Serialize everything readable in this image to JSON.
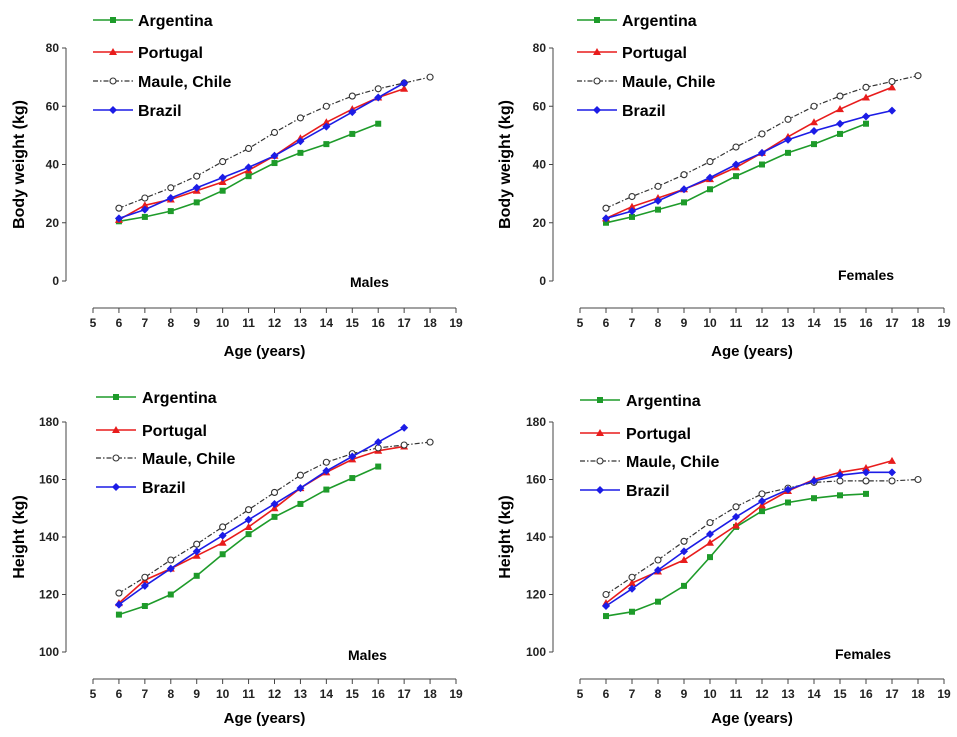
{
  "chart_data": [
    {
      "type": "line",
      "title": "",
      "annotation": "Males",
      "xlabel": "Age (years)",
      "ylabel": "Body weight (kg)",
      "xlim": [
        5,
        19
      ],
      "ylim": [
        0,
        80
      ],
      "x_ticks": [
        5,
        6,
        7,
        8,
        9,
        10,
        11,
        12,
        13,
        14,
        15,
        16,
        17,
        18,
        19
      ],
      "y_ticks": [
        0,
        20,
        40,
        60,
        80
      ],
      "series": [
        {
          "name": "Argentina",
          "color": "#1e9b2a",
          "marker": "square",
          "dash": "solid",
          "x": [
            6,
            7,
            8,
            9,
            10,
            11,
            12,
            13,
            14,
            15,
            16
          ],
          "values": [
            20.5,
            22,
            24,
            27,
            31,
            36,
            40.5,
            44,
            47,
            50.5,
            54
          ]
        },
        {
          "name": "Portugal",
          "color": "#e81c1c",
          "marker": "triangle",
          "dash": "solid",
          "x": [
            6,
            7,
            8,
            9,
            10,
            11,
            12,
            13,
            14,
            15,
            16,
            17
          ],
          "values": [
            21,
            26,
            28,
            31,
            34,
            38,
            43,
            49,
            54.5,
            59,
            63,
            66
          ]
        },
        {
          "name": "Maule, Chile",
          "color": "#333333",
          "marker": "circle-open",
          "dash": "dashdot",
          "x": [
            6,
            7,
            8,
            9,
            10,
            11,
            12,
            13,
            14,
            15,
            16,
            17,
            18
          ],
          "values": [
            25,
            28.5,
            32,
            36,
            41,
            45.5,
            51,
            56,
            60,
            63.5,
            66,
            68,
            70
          ]
        },
        {
          "name": "Brazil",
          "color": "#1c1ce6",
          "marker": "diamond",
          "dash": "solid",
          "x": [
            6,
            7,
            8,
            9,
            10,
            11,
            12,
            13,
            14,
            15,
            16,
            17
          ],
          "values": [
            21.5,
            24.5,
            28.5,
            32,
            35.5,
            39,
            43,
            48,
            53,
            58,
            63,
            68
          ]
        }
      ]
    },
    {
      "type": "line",
      "title": "",
      "annotation": "Females",
      "xlabel": "Age (years)",
      "ylabel": "Body weight (kg)",
      "xlim": [
        5,
        19
      ],
      "ylim": [
        0,
        80
      ],
      "x_ticks": [
        5,
        6,
        7,
        8,
        9,
        10,
        11,
        12,
        13,
        14,
        15,
        16,
        17,
        18,
        19
      ],
      "y_ticks": [
        0,
        20,
        40,
        60,
        80
      ],
      "series": [
        {
          "name": "Argentina",
          "color": "#1e9b2a",
          "marker": "square",
          "dash": "solid",
          "x": [
            6,
            7,
            8,
            9,
            10,
            11,
            12,
            13,
            14,
            15,
            16
          ],
          "values": [
            20,
            22,
            24.5,
            27,
            31.5,
            36,
            40,
            44,
            47,
            50.5,
            54
          ]
        },
        {
          "name": "Portugal",
          "color": "#e81c1c",
          "marker": "triangle",
          "dash": "solid",
          "x": [
            6,
            7,
            8,
            9,
            10,
            11,
            12,
            13,
            14,
            15,
            16,
            17
          ],
          "values": [
            21.5,
            25.5,
            28.5,
            31.5,
            35,
            39,
            44,
            49.5,
            54.5,
            59,
            63,
            66.5
          ]
        },
        {
          "name": "Maule, Chile",
          "color": "#333333",
          "marker": "circle-open",
          "dash": "dashdot",
          "x": [
            6,
            7,
            8,
            9,
            10,
            11,
            12,
            13,
            14,
            15,
            16,
            17,
            18
          ],
          "values": [
            25,
            29,
            32.5,
            36.5,
            41,
            46,
            50.5,
            55.5,
            60,
            63.5,
            66.5,
            68.5,
            70.5
          ]
        },
        {
          "name": "Brazil",
          "color": "#1c1ce6",
          "marker": "diamond",
          "dash": "solid",
          "x": [
            6,
            7,
            8,
            9,
            10,
            11,
            12,
            13,
            14,
            15,
            16,
            17
          ],
          "values": [
            21.5,
            24,
            27.5,
            31.5,
            35.5,
            40,
            44,
            48.5,
            51.5,
            54,
            56.5,
            58.5
          ]
        }
      ]
    },
    {
      "type": "line",
      "title": "",
      "annotation": "Males",
      "xlabel": "Age (years)",
      "ylabel": "Height (kg)",
      "xlim": [
        5,
        19
      ],
      "ylim": [
        100,
        180
      ],
      "x_ticks": [
        5,
        6,
        7,
        8,
        9,
        10,
        11,
        12,
        13,
        14,
        15,
        16,
        17,
        18,
        19
      ],
      "y_ticks": [
        100,
        120,
        140,
        160,
        180
      ],
      "series": [
        {
          "name": "Argentina",
          "color": "#1e9b2a",
          "marker": "square",
          "dash": "solid",
          "x": [
            6,
            7,
            8,
            9,
            10,
            11,
            12,
            13,
            14,
            15,
            16
          ],
          "values": [
            113,
            116,
            120,
            126.5,
            134,
            141,
            147,
            151.5,
            156.5,
            160.5,
            164.5
          ]
        },
        {
          "name": "Portugal",
          "color": "#e81c1c",
          "marker": "triangle",
          "dash": "solid",
          "x": [
            6,
            7,
            8,
            9,
            10,
            11,
            12,
            13,
            14,
            15,
            16,
            17
          ],
          "values": [
            117,
            125,
            129,
            133.5,
            138,
            143.5,
            150,
            157,
            162.5,
            167,
            170,
            171.5
          ]
        },
        {
          "name": "Maule, Chile",
          "color": "#333333",
          "marker": "circle-open",
          "dash": "dashdot",
          "x": [
            6,
            7,
            8,
            9,
            10,
            11,
            12,
            13,
            14,
            15,
            16,
            17,
            18
          ],
          "values": [
            120.5,
            126,
            132,
            137.5,
            143.5,
            149.5,
            155.5,
            161.5,
            166,
            169,
            171,
            172,
            173
          ]
        },
        {
          "name": "Brazil",
          "color": "#1c1ce6",
          "marker": "diamond",
          "dash": "solid",
          "x": [
            6,
            7,
            8,
            9,
            10,
            11,
            12,
            13,
            14,
            15,
            16,
            17
          ],
          "values": [
            116.5,
            123,
            129,
            135,
            140.5,
            146,
            151.5,
            157,
            163,
            168,
            173,
            178
          ]
        }
      ]
    },
    {
      "type": "line",
      "title": "",
      "annotation": "Females",
      "xlabel": "Age (years)",
      "ylabel": "Height (kg)",
      "xlim": [
        5,
        19
      ],
      "ylim": [
        100,
        180
      ],
      "x_ticks": [
        5,
        6,
        7,
        8,
        9,
        10,
        11,
        12,
        13,
        14,
        15,
        16,
        17,
        18,
        19
      ],
      "y_ticks": [
        100,
        120,
        140,
        160,
        180
      ],
      "series": [
        {
          "name": "Argentina",
          "color": "#1e9b2a",
          "marker": "square",
          "dash": "solid",
          "x": [
            6,
            7,
            8,
            9,
            10,
            11,
            12,
            13,
            14,
            15,
            16
          ],
          "values": [
            112.5,
            114,
            117.5,
            123,
            133,
            143.5,
            149,
            152,
            153.5,
            154.5,
            155
          ]
        },
        {
          "name": "Portugal",
          "color": "#e81c1c",
          "marker": "triangle",
          "dash": "solid",
          "x": [
            6,
            7,
            8,
            9,
            10,
            11,
            12,
            13,
            14,
            15,
            16,
            17
          ],
          "values": [
            117,
            124,
            128,
            132,
            138,
            144,
            151,
            156,
            160,
            162.5,
            164,
            166.5
          ]
        },
        {
          "name": "Maule, Chile",
          "color": "#333333",
          "marker": "circle-open",
          "dash": "dashdot",
          "x": [
            6,
            7,
            8,
            9,
            10,
            11,
            12,
            13,
            14,
            15,
            16,
            17,
            18
          ],
          "values": [
            120,
            126,
            132,
            138.5,
            145,
            150.5,
            155,
            157,
            159,
            159.5,
            159.5,
            159.5,
            160
          ]
        },
        {
          "name": "Brazil",
          "color": "#1c1ce6",
          "marker": "diamond",
          "dash": "solid",
          "x": [
            6,
            7,
            8,
            9,
            10,
            11,
            12,
            13,
            14,
            15,
            16,
            17
          ],
          "values": [
            116,
            122,
            128.5,
            135,
            141,
            147,
            152.5,
            156.5,
            159.5,
            161.5,
            162.5,
            162.5
          ]
        }
      ]
    }
  ]
}
